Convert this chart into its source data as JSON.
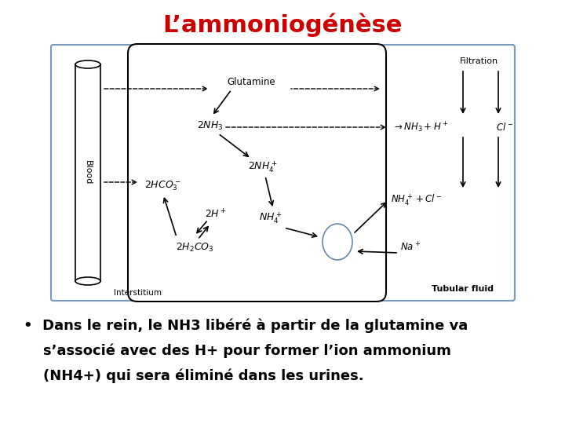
{
  "title": "L’ammoniogénèse",
  "title_color": "#cc0000",
  "title_fontsize": 22,
  "title_fontweight": "bold",
  "bg_color": "#ffffff",
  "bullet_line1": "•  Dans le rein, le NH3 libéré à partir de la glutamine va",
  "bullet_line2": "    s’associé avec des H+ pour former l’ion ammonium",
  "bullet_line3": "    (NH4+) qui sera éliminé dans les urines.",
  "bullet_fontsize": 13,
  "bullet_fontweight": "bold"
}
